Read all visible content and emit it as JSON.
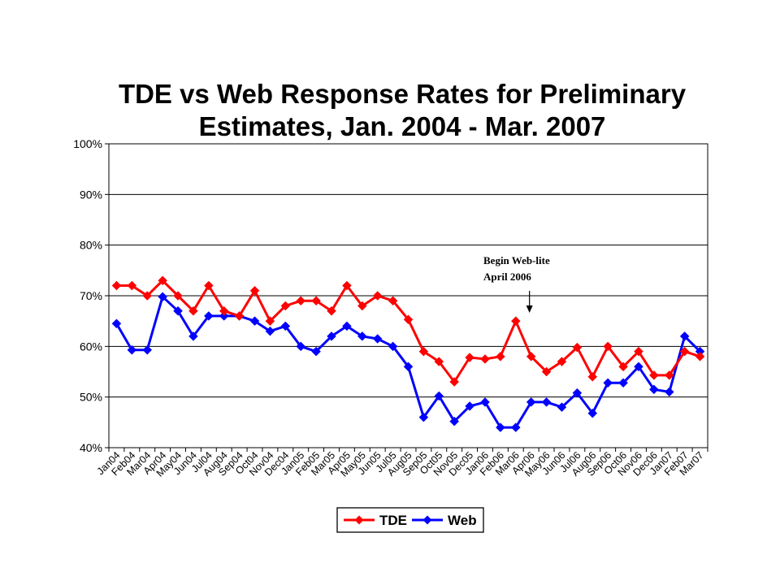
{
  "chart_data": {
    "type": "line",
    "title_lines": [
      "TDE vs Web Response Rates for Preliminary",
      "Estimates, Jan. 2004 - Mar. 2007"
    ],
    "categories": [
      "Jan04",
      "Feb04",
      "Mar04",
      "Apr04",
      "May04",
      "Jun04",
      "Jul04",
      "Aug04",
      "Sep04",
      "Oct04",
      "Nov04",
      "Dec04",
      "Jan05",
      "Feb05",
      "Mar05",
      "Apr05",
      "May05",
      "Jun05",
      "Jul05",
      "Aug05",
      "Sep05",
      "Oct05",
      "Nov05",
      "Dec05",
      "Jan06",
      "Feb06",
      "Mar06",
      "Apr06",
      "May06",
      "Jun06",
      "Jul06",
      "Aug06",
      "Sep06",
      "Oct06",
      "Nov06",
      "Dec06",
      "Jan07",
      "Feb07",
      "Mar07"
    ],
    "series": [
      {
        "name": "TDE",
        "color": "#ff0000",
        "values": [
          72,
          72,
          70,
          73,
          70,
          67,
          72,
          67,
          66,
          71,
          65,
          68,
          69,
          69,
          67,
          72,
          68,
          70,
          69,
          65.3,
          59,
          57,
          53,
          57.8,
          57.5,
          58,
          65,
          58,
          55,
          57,
          59.8,
          54,
          60,
          56,
          59,
          54.3,
          54.3,
          59,
          58
        ]
      },
      {
        "name": "Web",
        "color": "#0000ff",
        "values": [
          64.5,
          59.3,
          59.3,
          69.8,
          67,
          62,
          66,
          66,
          66,
          65,
          63,
          64,
          60,
          59,
          62,
          64,
          62,
          61.5,
          60,
          56,
          46,
          50.2,
          45.2,
          48.2,
          49,
          44,
          44,
          49,
          49,
          48,
          50.8,
          46.8,
          52.8,
          52.8,
          56,
          51.5,
          51,
          62,
          59
        ]
      }
    ],
    "ylim": [
      40,
      100
    ],
    "yticks": [
      "40%",
      "50%",
      "60%",
      "70%",
      "80%",
      "90%",
      "100%"
    ],
    "grid": true,
    "legend": "bottom-center",
    "annotation": {
      "lines": [
        "Begin Web-lite",
        "April 2006"
      ],
      "target": "Apr06"
    }
  }
}
